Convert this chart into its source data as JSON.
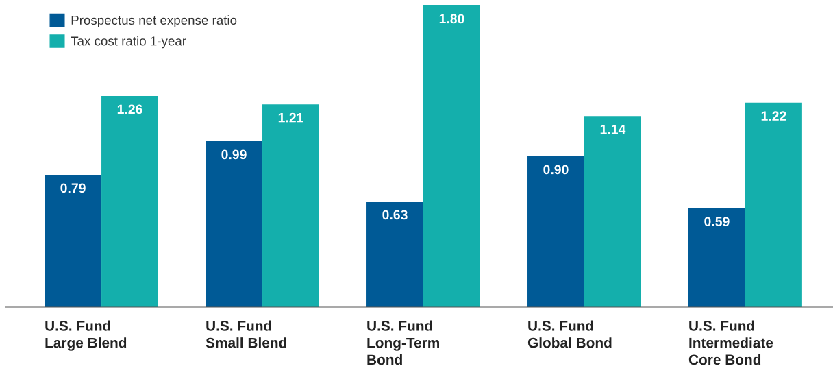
{
  "chart_data": {
    "type": "bar",
    "categories": [
      "U.S. Fund\nLarge Blend",
      "U.S. Fund\nSmall Blend",
      "U.S. Fund\nLong-Term\nBond",
      "U.S. Fund\nGlobal Bond",
      "U.S. Fund\nIntermediate\nCore Bond"
    ],
    "series": [
      {
        "name": "Prospectus net expense ratio",
        "color": "#005a96",
        "values": [
          0.79,
          0.99,
          0.63,
          0.9,
          0.59
        ],
        "value_labels": [
          "0.79",
          "0.99",
          "0.63",
          "0.90",
          "0.59"
        ]
      },
      {
        "name": "Tax cost ratio 1-year",
        "color": "#14afac",
        "values": [
          1.26,
          1.21,
          1.8,
          1.14,
          1.22
        ],
        "value_labels": [
          "1.26",
          "1.21",
          "1.80",
          "1.14",
          "1.22"
        ]
      }
    ],
    "ylim": [
      0,
      1.8
    ],
    "tick_labels": "x",
    "legend": "top left",
    "grid": false
  }
}
